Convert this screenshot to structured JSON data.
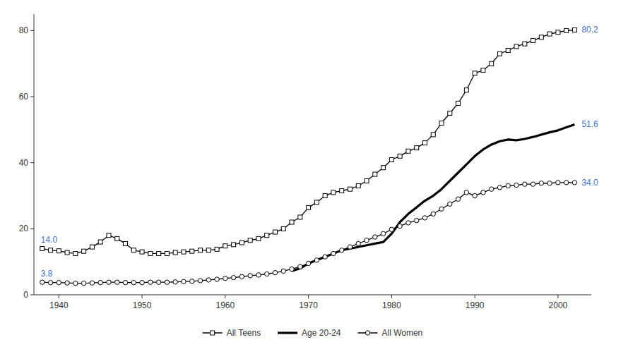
{
  "chart_data": {
    "type": "line",
    "xlim": [
      1937,
      2004
    ],
    "ylim": [
      0,
      85
    ],
    "xticks": [
      1940,
      1950,
      1960,
      1970,
      1980,
      1990,
      2000
    ],
    "yticks": [
      0,
      20,
      40,
      60,
      80
    ],
    "grid": false,
    "legend": "bottom",
    "series": [
      {
        "name": "All Teens",
        "color": "#000000",
        "marker": "square",
        "line_style": "solid",
        "x": [
          1938,
          1939,
          1940,
          1941,
          1942,
          1943,
          1944,
          1945,
          1946,
          1947,
          1948,
          1949,
          1950,
          1951,
          1952,
          1953,
          1954,
          1955,
          1956,
          1957,
          1958,
          1959,
          1960,
          1961,
          1962,
          1963,
          1964,
          1965,
          1966,
          1967,
          1968,
          1969,
          1970,
          1971,
          1972,
          1973,
          1974,
          1975,
          1976,
          1977,
          1978,
          1979,
          1980,
          1981,
          1982,
          1983,
          1984,
          1985,
          1986,
          1987,
          1988,
          1989,
          1990,
          1991,
          1992,
          1993,
          1994,
          1995,
          1996,
          1997,
          1998,
          1999,
          2000,
          2001,
          2002
        ],
        "values": [
          14.0,
          13.5,
          13.3,
          12.8,
          12.5,
          13.2,
          14.5,
          16.0,
          18.0,
          17.0,
          15.5,
          13.5,
          13.0,
          12.5,
          12.5,
          12.5,
          12.8,
          13.0,
          13.2,
          13.5,
          13.5,
          13.8,
          14.8,
          15.2,
          15.8,
          16.5,
          17.0,
          18.0,
          19.0,
          20.0,
          22.0,
          23.5,
          26.4,
          28.0,
          30.0,
          31.0,
          31.5,
          32.0,
          33.0,
          34.5,
          36.5,
          38.5,
          40.9,
          42.0,
          43.5,
          44.5,
          46.0,
          48.5,
          52.0,
          55.0,
          58.0,
          62.0,
          67.1,
          68.0,
          70.0,
          73.0,
          74.0,
          75.2,
          76.0,
          77.0,
          78.0,
          79.0,
          79.5,
          80.0,
          80.2
        ]
      },
      {
        "name": "Age 20-24",
        "color": "#000000",
        "marker": "none",
        "line_style": "solid",
        "x": [
          1968,
          1969,
          1970,
          1971,
          1972,
          1973,
          1974,
          1975,
          1976,
          1977,
          1978,
          1979,
          1980,
          1981,
          1982,
          1983,
          1984,
          1985,
          1986,
          1987,
          1988,
          1989,
          1990,
          1991,
          1992,
          1993,
          1994,
          1995,
          1996,
          1997,
          1998,
          1999,
          2000,
          2001,
          2002
        ],
        "values": [
          7.2,
          8.0,
          9.5,
          10.5,
          11.5,
          12.5,
          13.5,
          14.0,
          14.5,
          15.0,
          15.5,
          16.0,
          18.5,
          22.0,
          24.5,
          26.5,
          28.5,
          30.0,
          32.0,
          34.5,
          37.0,
          39.5,
          42.0,
          44.0,
          45.5,
          46.5,
          47.0,
          46.8,
          47.2,
          47.8,
          48.5,
          49.2,
          49.8,
          50.7,
          51.6
        ]
      },
      {
        "name": "All Women",
        "color": "#000000",
        "marker": "circle",
        "line_style": "solid",
        "x": [
          1938,
          1939,
          1940,
          1941,
          1942,
          1943,
          1944,
          1945,
          1946,
          1947,
          1948,
          1949,
          1950,
          1951,
          1952,
          1953,
          1954,
          1955,
          1956,
          1957,
          1958,
          1959,
          1960,
          1961,
          1962,
          1963,
          1964,
          1965,
          1966,
          1967,
          1968,
          1969,
          1970,
          1971,
          1972,
          1973,
          1974,
          1975,
          1976,
          1977,
          1978,
          1979,
          1980,
          1981,
          1982,
          1983,
          1984,
          1985,
          1986,
          1987,
          1988,
          1989,
          1990,
          1991,
          1992,
          1993,
          1994,
          1995,
          1996,
          1997,
          1998,
          1999,
          2000,
          2001,
          2002
        ],
        "values": [
          3.8,
          3.7,
          3.7,
          3.6,
          3.5,
          3.5,
          3.6,
          3.7,
          3.8,
          3.8,
          3.7,
          3.7,
          3.7,
          3.8,
          3.8,
          3.8,
          3.9,
          4.0,
          4.1,
          4.3,
          4.5,
          4.7,
          5.0,
          5.2,
          5.5,
          5.8,
          6.0,
          6.3,
          6.7,
          7.2,
          7.8,
          8.5,
          9.5,
          10.5,
          11.5,
          12.5,
          13.5,
          14.5,
          15.5,
          16.5,
          17.5,
          18.5,
          19.8,
          20.8,
          21.8,
          22.5,
          23.3,
          24.5,
          26.0,
          27.5,
          29.0,
          31.0,
          30.0,
          31.0,
          32.0,
          32.5,
          33.0,
          33.2,
          33.5,
          33.5,
          33.8,
          33.8,
          34.0,
          34.0,
          34.0
        ]
      }
    ],
    "annotations": [
      {
        "text": "80.2",
        "x": 2002,
        "y": 80.2,
        "position": "right",
        "color": "#4472c4"
      },
      {
        "text": "51.6",
        "x": 2002,
        "y": 51.6,
        "position": "right",
        "color": "#4472c4"
      },
      {
        "text": "34.0",
        "x": 2002,
        "y": 34.0,
        "position": "right",
        "color": "#4472c4"
      },
      {
        "text": "14.0",
        "x": 1938,
        "y": 14.0,
        "position": "above",
        "color": "#4472c4"
      },
      {
        "text": "3.8",
        "x": 1938,
        "y": 3.8,
        "position": "above",
        "color": "#4472c4"
      }
    ]
  }
}
